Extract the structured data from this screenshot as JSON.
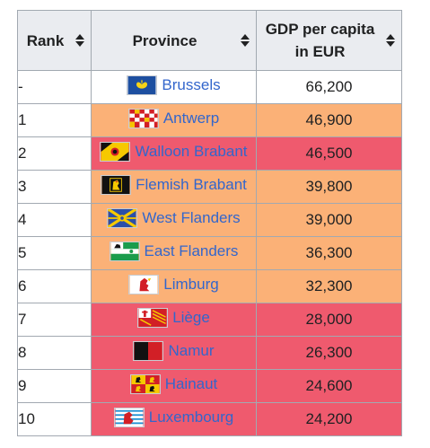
{
  "table": {
    "headers": {
      "rank": "Rank",
      "province": "Province",
      "gdp_line1": "GDP per capita",
      "gdp_line2": "in EUR"
    },
    "rows": [
      {
        "rank": "-",
        "province": "Brussels",
        "gdp": "66,200",
        "flag": "brussels-flag-icon",
        "tone": "white"
      },
      {
        "rank": "1",
        "province": "Antwerp",
        "gdp": "46,900",
        "flag": "antwerp-flag-icon",
        "tone": "orange"
      },
      {
        "rank": "2",
        "province": "Walloon Brabant",
        "gdp": "46,500",
        "flag": "walloon-brabant-flag-icon",
        "tone": "red"
      },
      {
        "rank": "3",
        "province": "Flemish Brabant",
        "gdp": "39,800",
        "flag": "flemish-brabant-flag-icon",
        "tone": "orange"
      },
      {
        "rank": "4",
        "province": "West Flanders",
        "gdp": "39,000",
        "flag": "west-flanders-flag-icon",
        "tone": "orange"
      },
      {
        "rank": "5",
        "province": "East Flanders",
        "gdp": "36,300",
        "flag": "east-flanders-flag-icon",
        "tone": "orange"
      },
      {
        "rank": "6",
        "province": "Limburg",
        "gdp": "32,300",
        "flag": "limburg-flag-icon",
        "tone": "orange"
      },
      {
        "rank": "7",
        "province": "Liège",
        "gdp": "28,000",
        "flag": "liege-flag-icon",
        "tone": "red"
      },
      {
        "rank": "8",
        "province": "Namur",
        "gdp": "26,300",
        "flag": "namur-flag-icon",
        "tone": "red"
      },
      {
        "rank": "9",
        "province": "Hainaut",
        "gdp": "24,600",
        "flag": "hainaut-flag-icon",
        "tone": "red"
      },
      {
        "rank": "10",
        "province": "Luxembourg",
        "gdp": "24,200",
        "flag": "luxembourg-flag-icon",
        "tone": "red"
      }
    ]
  },
  "colors": {
    "header_bg": "#eaecf0",
    "orange": "#fbb177",
    "red": "#ef5a6e",
    "link": "#3366cc"
  }
}
